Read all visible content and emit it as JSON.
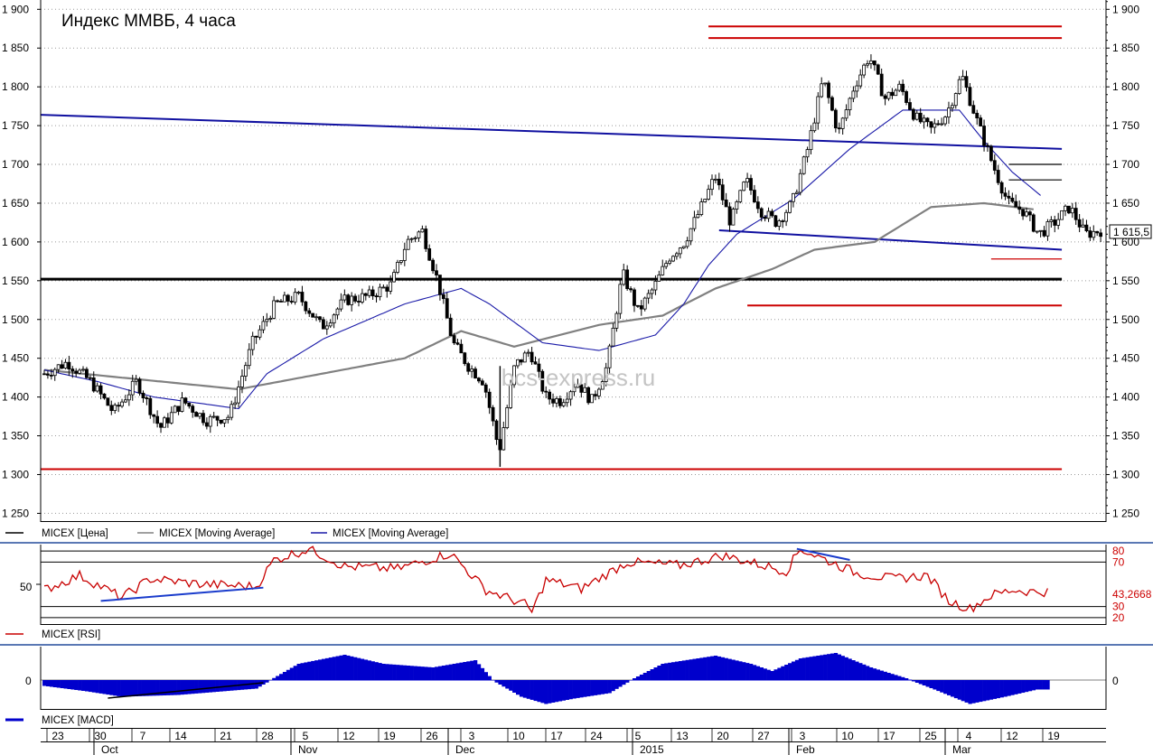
{
  "chart_data": {
    "type": "candlestick",
    "title": "Индекс ММВБ, 4 часа",
    "watermark": "bcs-express.ru",
    "last_price": "1 615,5",
    "last_rsi": "43,2668",
    "price_axis": {
      "ylim": [
        1240,
        1912
      ],
      "ticks": [
        1250,
        1300,
        1350,
        1400,
        1450,
        1500,
        1550,
        1600,
        1650,
        1700,
        1750,
        1800,
        1850,
        1900
      ],
      "tick_labels": [
        "1 250",
        "1 300",
        "1 350",
        "1 400",
        "1 450",
        "1 500",
        "1 550",
        "1 600",
        "1 650",
        "1 700",
        "1 750",
        "1 800",
        "1 850",
        "1 900"
      ]
    },
    "rsi_axis": {
      "ylim": [
        15,
        85
      ],
      "levels": [
        20,
        30,
        70,
        80
      ],
      "level_labels": [
        "20",
        "30",
        "70",
        "80"
      ],
      "mid_label": "50"
    },
    "macd_axis": {
      "zero_label": "0"
    },
    "time_axis": {
      "day_labels": [
        "23",
        "30",
        "7",
        "14",
        "21",
        "28",
        "5",
        "12",
        "19",
        "26",
        "3",
        "10",
        "17",
        "24",
        "5",
        "13",
        "20",
        "27",
        "3",
        "10",
        "17",
        "25",
        "4",
        "12",
        "19"
      ],
      "month_labels": [
        "Oct",
        "Nov",
        "Dec",
        "2015",
        "Feb",
        "Mar"
      ]
    },
    "anchors": [
      [
        0,
        1430
      ],
      [
        3,
        1445
      ],
      [
        6,
        1420
      ],
      [
        9,
        1380
      ],
      [
        12,
        1420
      ],
      [
        15,
        1360
      ],
      [
        18,
        1395
      ],
      [
        21,
        1370
      ],
      [
        24,
        1375
      ],
      [
        27,
        1470
      ],
      [
        30,
        1520
      ],
      [
        33,
        1530
      ],
      [
        36,
        1490
      ],
      [
        39,
        1525
      ],
      [
        42,
        1530
      ],
      [
        45,
        1545
      ],
      [
        47,
        1600
      ],
      [
        49,
        1615
      ],
      [
        51,
        1550
      ],
      [
        53,
        1470
      ],
      [
        55,
        1440
      ],
      [
        57,
        1420
      ],
      [
        59,
        1330
      ],
      [
        61,
        1440
      ],
      [
        63,
        1460
      ],
      [
        65,
        1400
      ],
      [
        67,
        1395
      ],
      [
        69,
        1420
      ],
      [
        71,
        1395
      ],
      [
        73,
        1440
      ],
      [
        75,
        1560
      ],
      [
        77,
        1510
      ],
      [
        79,
        1540
      ],
      [
        81,
        1580
      ],
      [
        83,
        1600
      ],
      [
        85,
        1640
      ],
      [
        87,
        1685
      ],
      [
        89,
        1625
      ],
      [
        91,
        1680
      ],
      [
        93,
        1640
      ],
      [
        95,
        1625
      ],
      [
        97,
        1650
      ],
      [
        99,
        1720
      ],
      [
        101,
        1810
      ],
      [
        103,
        1740
      ],
      [
        105,
        1800
      ],
      [
        107,
        1840
      ],
      [
        109,
        1785
      ],
      [
        111,
        1800
      ],
      [
        113,
        1760
      ],
      [
        115,
        1745
      ],
      [
        117,
        1765
      ],
      [
        119,
        1815
      ],
      [
        121,
        1755
      ],
      [
        123,
        1700
      ],
      [
        125,
        1650
      ],
      [
        127,
        1640
      ],
      [
        129,
        1610
      ],
      [
        131,
        1625
      ],
      [
        133,
        1645
      ],
      [
        135,
        1610
      ],
      [
        137,
        1615
      ]
    ],
    "candle_count": 300,
    "ma_long": [
      [
        0,
        1435
      ],
      [
        55,
        1410
      ],
      [
        102,
        1450
      ],
      [
        118,
        1485
      ],
      [
        133,
        1465
      ],
      [
        157,
        1493
      ],
      [
        175,
        1505
      ],
      [
        190,
        1540
      ],
      [
        206,
        1565
      ],
      [
        218,
        1590
      ],
      [
        235,
        1600
      ],
      [
        251,
        1645
      ],
      [
        266,
        1650
      ],
      [
        280,
        1642
      ]
    ],
    "ma_short": [
      [
        0,
        1435
      ],
      [
        15,
        1420
      ],
      [
        31,
        1400
      ],
      [
        55,
        1385
      ],
      [
        63,
        1430
      ],
      [
        79,
        1475
      ],
      [
        102,
        1520
      ],
      [
        118,
        1540
      ],
      [
        126,
        1520
      ],
      [
        141,
        1470
      ],
      [
        157,
        1460
      ],
      [
        173,
        1480
      ],
      [
        181,
        1520
      ],
      [
        188,
        1570
      ],
      [
        196,
        1610
      ],
      [
        212,
        1655
      ],
      [
        228,
        1720
      ],
      [
        243,
        1770
      ],
      [
        259,
        1770
      ],
      [
        266,
        1730
      ],
      [
        274,
        1690
      ],
      [
        282,
        1660
      ]
    ],
    "trendlines": [
      {
        "name": "long-descending-resistance",
        "color": "#1010a0",
        "from": [
          -1,
          1764
        ],
        "to": [
          288,
          1720
        ]
      },
      {
        "name": "lower-support",
        "color": "#1010a0",
        "from": [
          191,
          1615
        ],
        "to": [
          288,
          1590
        ]
      },
      {
        "name": "key-level-1550",
        "color": "#000000",
        "from": [
          -1,
          1552
        ],
        "to": [
          288,
          1552
        ]
      },
      {
        "name": "red-level-1880",
        "color": "#cc0000",
        "from": [
          188,
          1878
        ],
        "to": [
          288,
          1878
        ]
      },
      {
        "name": "red-level-1863",
        "color": "#cc0000",
        "from": [
          188,
          1863
        ],
        "to": [
          288,
          1863
        ]
      },
      {
        "name": "red-level-1518",
        "color": "#cc0000",
        "from": [
          199,
          1518
        ],
        "to": [
          288,
          1518
        ]
      },
      {
        "name": "red-level-1307",
        "color": "#cc0000",
        "from": [
          -1,
          1307
        ],
        "to": [
          288,
          1307
        ]
      },
      {
        "name": "red-short-1578",
        "color": "#cc0000",
        "from": [
          268,
          1578
        ],
        "to": [
          288,
          1578
        ]
      },
      {
        "name": "black-short-1700",
        "color": "#000000",
        "from": [
          273,
          1700
        ],
        "to": [
          288,
          1700
        ]
      },
      {
        "name": "black-short-1680",
        "color": "#000000",
        "from": [
          273,
          1680
        ],
        "to": [
          288,
          1680
        ]
      }
    ],
    "rsi_anchors": [
      [
        0,
        45
      ],
      [
        10,
        58
      ],
      [
        16,
        48
      ],
      [
        22,
        38
      ],
      [
        30,
        55
      ],
      [
        45,
        50
      ],
      [
        60,
        48
      ],
      [
        65,
        72
      ],
      [
        75,
        82
      ],
      [
        85,
        66
      ],
      [
        100,
        64
      ],
      [
        115,
        78
      ],
      [
        125,
        45
      ],
      [
        136,
        32
      ],
      [
        138,
        25
      ],
      [
        142,
        54
      ],
      [
        152,
        46
      ],
      [
        165,
        70
      ],
      [
        180,
        67
      ],
      [
        192,
        76
      ],
      [
        210,
        62
      ],
      [
        214,
        82
      ],
      [
        230,
        60
      ],
      [
        240,
        55
      ],
      [
        250,
        58
      ],
      [
        256,
        35
      ],
      [
        262,
        28
      ],
      [
        268,
        40
      ],
      [
        274,
        45
      ],
      [
        280,
        43.3
      ]
    ],
    "rsi_divergence_lines": [
      {
        "from": [
          16,
          35
        ],
        "to": [
          62,
          47
        ]
      },
      {
        "from": [
          213,
          82
        ],
        "to": [
          228,
          72
        ]
      }
    ],
    "macd_anchors": [
      [
        0,
        -6
      ],
      [
        12,
        -12
      ],
      [
        22,
        -18
      ],
      [
        38,
        -16
      ],
      [
        60,
        -9
      ],
      [
        64,
        0
      ],
      [
        72,
        18
      ],
      [
        85,
        28
      ],
      [
        96,
        18
      ],
      [
        110,
        14
      ],
      [
        122,
        22
      ],
      [
        127,
        0
      ],
      [
        135,
        -18
      ],
      [
        142,
        -26
      ],
      [
        150,
        -20
      ],
      [
        160,
        -14
      ],
      [
        166,
        0
      ],
      [
        175,
        18
      ],
      [
        190,
        27
      ],
      [
        200,
        18
      ],
      [
        206,
        10
      ],
      [
        214,
        24
      ],
      [
        224,
        30
      ],
      [
        234,
        14
      ],
      [
        244,
        2
      ],
      [
        252,
        -10
      ],
      [
        262,
        -26
      ],
      [
        272,
        -18
      ],
      [
        281,
        -10
      ]
    ],
    "macd_divergence_line": {
      "from": [
        18,
        -20
      ],
      "to": [
        62,
        -3
      ]
    },
    "legend": {
      "price": [
        "MICEX [Цена]",
        "MICEX [Moving Average]",
        "MICEX [Moving Average]"
      ],
      "rsi": "MICEX [RSI]",
      "macd": "MICEX [MACD]"
    },
    "colors": {
      "candles": "#000000",
      "ma_long": "#808080",
      "ma_short": "#1a1aa8",
      "rsi": "#c80000",
      "macd": "#0000cc",
      "panel_border": "#5a78b4"
    }
  }
}
